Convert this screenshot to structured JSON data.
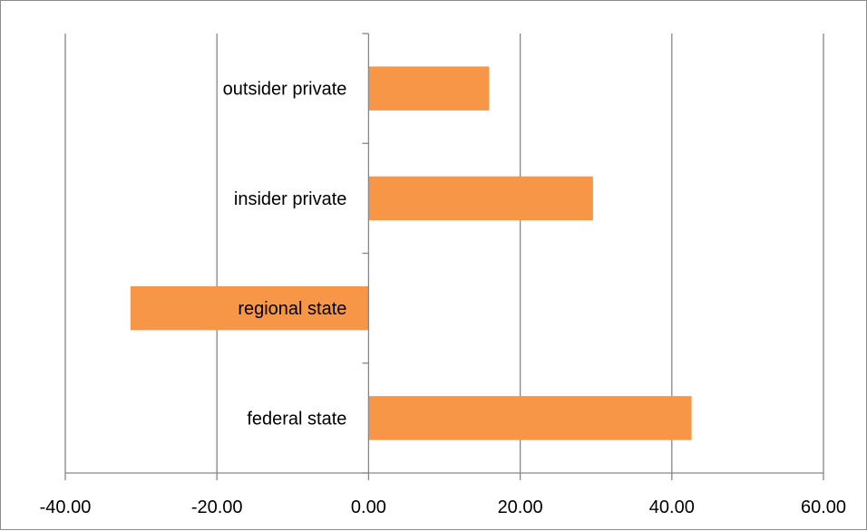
{
  "chart_data": {
    "type": "bar",
    "orientation": "horizontal",
    "categories": [
      "federal state",
      "regional state",
      "insider private",
      "outsider private"
    ],
    "values": [
      42.6,
      -31.4,
      29.6,
      15.9
    ],
    "title": "",
    "xlabel": "",
    "ylabel": "",
    "xlim": [
      -40,
      60
    ],
    "xticks": [
      -40,
      -20,
      0,
      20,
      40,
      60
    ],
    "xtick_labels": [
      "-40.00",
      "-20.00",
      "0.00",
      "20.00",
      "40.00",
      "60.00"
    ],
    "grid": "vertical major gridlines",
    "legend": "none",
    "colors": {
      "bar": "#F79646",
      "grid": "#868686",
      "axis": "#868686"
    }
  }
}
